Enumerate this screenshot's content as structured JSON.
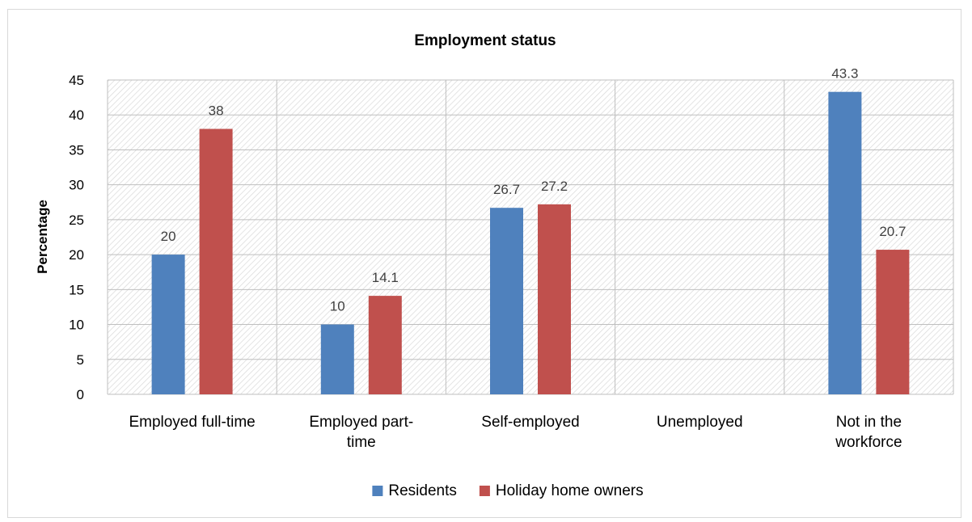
{
  "chart_data": {
    "type": "bar",
    "title": "Employment status",
    "xlabel": "",
    "ylabel": "Percentage",
    "ylim": [
      0,
      45
    ],
    "ytick_step": 5,
    "categories": [
      [
        "Employed full-time"
      ],
      [
        "Employed part-",
        "time"
      ],
      [
        "Self-employed"
      ],
      [
        "Unemployed"
      ],
      [
        "Not in the",
        "workforce"
      ]
    ],
    "series": [
      {
        "name": "Residents",
        "color": "#4f81bd",
        "values": [
          20,
          10,
          26.7,
          null,
          43.3
        ]
      },
      {
        "name": "Holiday home owners",
        "color": "#c0504d",
        "values": [
          38,
          14.1,
          27.2,
          null,
          20.7
        ]
      }
    ],
    "data_labels": true,
    "grid": true,
    "plot_background": "hatched",
    "legend_position": "bottom"
  }
}
